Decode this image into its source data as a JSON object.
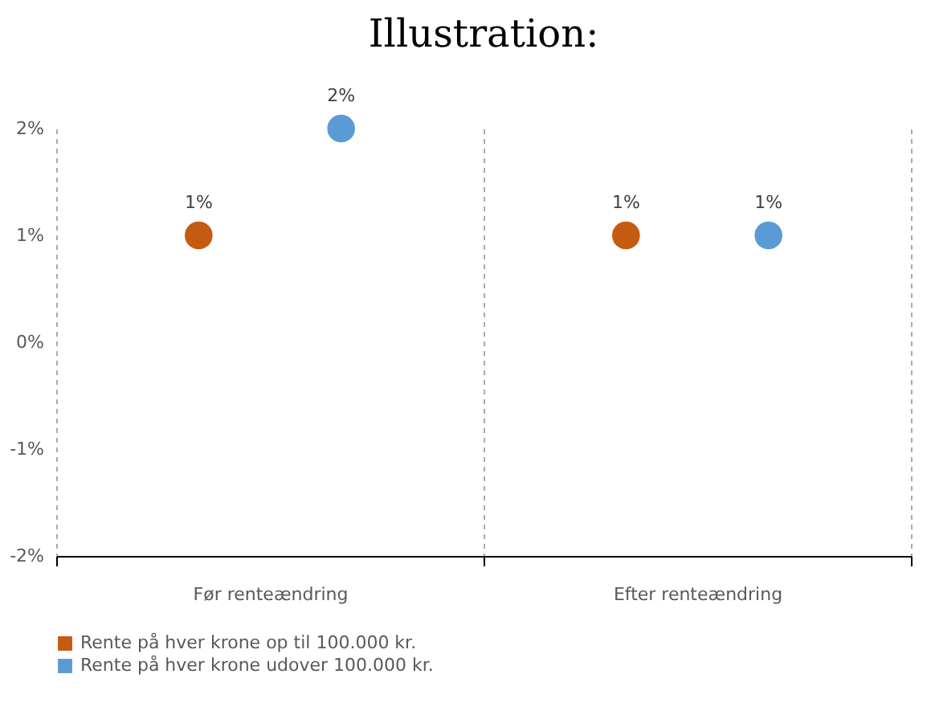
{
  "chart_data": {
    "type": "scatter",
    "title": "Illustration:",
    "categories": [
      "Før renteændring",
      "Efter renteændring"
    ],
    "series": [
      {
        "name": "Rente på hver krone op til 100.000 kr.",
        "color": "#c55a11",
        "values": [
          1,
          1
        ],
        "value_labels": [
          "1%",
          "1%"
        ]
      },
      {
        "name": "Rente på hver krone udover 100.000 kr.",
        "color": "#5b9bd5",
        "values": [
          2,
          1
        ],
        "value_labels": [
          "2%",
          "1%"
        ]
      }
    ],
    "ylim": [
      -2,
      2
    ],
    "yticks": [
      {
        "value": -2,
        "label": "-2%"
      },
      {
        "value": -1,
        "label": "-1%"
      },
      {
        "value": 0,
        "label": "0%"
      },
      {
        "value": 1,
        "label": "1%"
      },
      {
        "value": 2,
        "label": "2%"
      }
    ],
    "grid": "x",
    "legend": "bottom",
    "marker": "circle"
  }
}
